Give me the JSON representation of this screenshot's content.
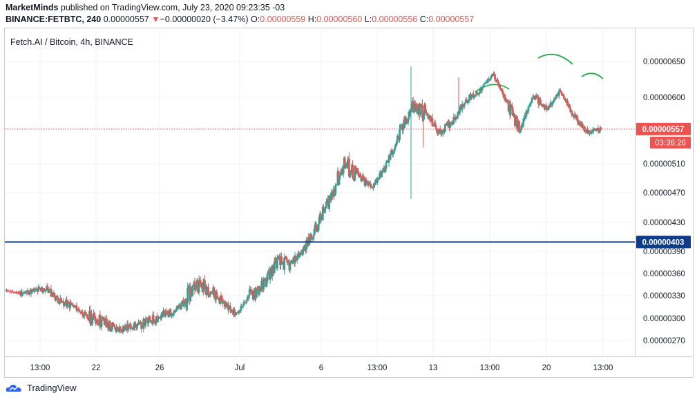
{
  "header": {
    "author": "MarketMinds",
    "published": "published on TradingView.com, July 23, 2020 09:23:35 -03",
    "symbol_line": "BINANCE:FETBTC, 240",
    "last_price": "0.00000557",
    "change_arrow": "▼",
    "change": "−0.00000020 (−3.47%)",
    "o_label": "O:",
    "o_value": "0.00000559",
    "h_label": "H:",
    "h_value": "0.00000560",
    "l_label": "L:",
    "l_value": "0.00000556",
    "c_label": "C:",
    "c_value": "0.00000557"
  },
  "footer": {
    "brand": "TradingView"
  },
  "colors": {
    "up": "#26a69a",
    "down": "#ef5350",
    "annotation": "#22a84a",
    "support_line": "#0d3d8a",
    "price_badge": "#ef5350",
    "support_badge": "#0d3d8a",
    "grid": "#eef0f3",
    "axis_text": "#131722"
  },
  "chart_data": {
    "type": "candlestick",
    "title": "Fetch.AI / Bitcoin, 4h, BINANCE",
    "x_ticks": [
      "13:00",
      "22",
      "26",
      "Jul",
      "6",
      "13:00",
      "13",
      "13:00",
      "20",
      "13:00"
    ],
    "y_ticks": [
      "0.00000650",
      "0.00000600",
      "0.00000510",
      "0.00000470",
      "0.00000430",
      "0.00000390",
      "0.00000360",
      "0.00000330",
      "0.00000300",
      "0.00000270"
    ],
    "y_tick_values": [
      650,
      600,
      510,
      470,
      430,
      390,
      360,
      330,
      300,
      270
    ],
    "y_unit_note": "values ×1e-8 BTC",
    "ylim": [
      255,
      700
    ],
    "last_price": 557,
    "last_price_label": "0.00000557",
    "countdown": "03:36:26",
    "support_level": 403,
    "support_label": "0.00000403",
    "grid": true,
    "series": [
      {
        "name": "",
        "phases": [
          [
            337,
            0,
            4
          ],
          [
            333,
            7,
            3
          ],
          [
            336,
            10,
            5
          ],
          [
            339,
            10,
            4
          ],
          [
            322,
            10,
            3
          ],
          [
            316,
            7,
            3
          ],
          [
            302,
            18,
            3
          ],
          [
            297,
            20,
            3
          ],
          [
            285,
            11,
            3
          ],
          [
            288,
            9,
            3
          ],
          [
            292,
            13,
            3
          ],
          [
            300,
            16,
            3
          ],
          [
            306,
            10,
            3
          ],
          [
            316,
            24,
            4
          ],
          [
            346,
            21,
            4
          ],
          [
            340,
            17,
            3
          ],
          [
            322,
            8,
            4
          ],
          [
            305,
            5,
            4
          ],
          [
            330,
            21,
            4
          ],
          [
            344,
            19,
            4
          ],
          [
            376,
            19,
            5
          ],
          [
            372,
            10,
            5
          ],
          [
            392,
            15,
            5
          ],
          [
            425,
            20,
            6
          ],
          [
            464,
            24,
            6
          ],
          [
            510,
            28,
            8
          ],
          [
            493,
            14,
            7
          ],
          [
            477,
            10,
            7
          ],
          [
            503,
            14,
            6
          ],
          [
            545,
            20,
            7
          ],
          [
            587,
            23,
            7
          ],
          [
            580,
            11,
            6
          ],
          [
            552,
            11,
            6
          ],
          [
            567,
            9,
            5
          ],
          [
            596,
            9,
            6
          ],
          [
            608,
            6,
            6
          ],
          [
            633,
            7,
            6
          ],
          [
            595,
            19,
            7
          ],
          [
            556,
            7,
            7
          ],
          [
            602,
            9,
            7
          ],
          [
            583,
            9,
            7
          ],
          [
            608,
            8,
            7
          ],
          [
            575,
            9,
            7
          ],
          [
            553,
            6,
            5
          ],
          [
            557,
            1,
            2
          ]
        ],
        "spikes": [
          [
            68,
            462
          ],
          [
            68,
            643
          ],
          [
            70,
            532
          ],
          [
            76,
            628
          ]
        ],
        "seed": 11
      }
    ]
  },
  "annotations": [
    {
      "type": "arc",
      "label": "left-shoulder"
    },
    {
      "type": "arc",
      "label": "head"
    },
    {
      "type": "arc",
      "label": "right-shoulder"
    }
  ]
}
